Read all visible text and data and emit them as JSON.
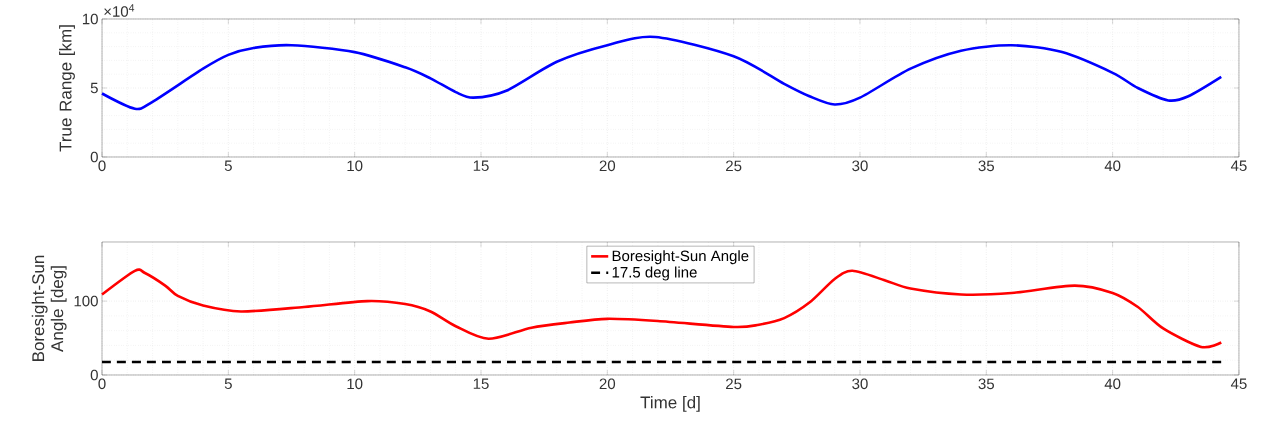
{
  "chart_data": [
    {
      "type": "line",
      "ylabel": "True Range [km]",
      "annotations": [
        "×10$^{4}$"
      ],
      "xlim": [
        0,
        45
      ],
      "xticks": [
        0,
        5,
        10,
        15,
        20,
        25,
        30,
        35,
        40,
        45
      ],
      "ylim": [
        0,
        10
      ],
      "yticks": [
        0,
        5,
        10
      ],
      "grid": true,
      "series": [
        {
          "color": "#0000ff",
          "x": [
            0,
            1.3,
            2,
            4,
            5,
            6,
            7.5,
            10,
            12,
            13,
            14,
            14.7,
            16,
            18,
            20,
            21.9,
            25,
            27,
            28,
            29,
            30,
            32,
            34,
            36,
            38,
            40,
            41,
            42.2,
            43,
            44.3
          ],
          "values": [
            4.6,
            3.5,
            4.0,
            6.4,
            7.4,
            7.9,
            8.1,
            7.6,
            6.5,
            5.7,
            4.7,
            4.3,
            4.8,
            6.9,
            8.1,
            8.7,
            7.3,
            5.3,
            4.4,
            3.8,
            4.3,
            6.4,
            7.7,
            8.1,
            7.6,
            6.1,
            5.0,
            4.1,
            4.4,
            5.8
          ]
        }
      ]
    },
    {
      "type": "line",
      "xlabel": "Time [d]",
      "ylabel": "Boresight-Sun Angle [deg]",
      "xlim": [
        0,
        45
      ],
      "xticks": [
        0,
        5,
        10,
        15,
        20,
        25,
        30,
        35,
        40,
        45
      ],
      "ylim": [
        0,
        180
      ],
      "yticks": [
        0,
        100
      ],
      "grid": true,
      "legend": "top",
      "series": [
        {
          "name": "Boresight-Sun Angle",
          "color": "#ff0000",
          "line_style": "solid",
          "x": [
            0,
            1.3,
            1.7,
            2.5,
            3,
            4,
            5.5,
            8,
            10.5,
            12,
            13,
            14,
            15.3,
            17,
            18.5,
            20,
            22,
            25,
            26,
            27,
            28,
            29,
            29.7,
            31,
            32,
            34,
            36,
            38.5,
            40,
            41,
            42,
            43.5,
            44.3
          ],
          "values": [
            109,
            141,
            138,
            121,
            107,
            94,
            86,
            92,
            100,
            96,
            86,
            66,
            49,
            64,
            71,
            76,
            73,
            65,
            68,
            77,
            98,
            130,
            141,
            128,
            117,
            109,
            111,
            121,
            111,
            92,
            63,
            38,
            44
          ]
        },
        {
          "name": "17.5 deg line",
          "color": "#000000",
          "line_style": "dashed",
          "x": [
            0,
            44.3
          ],
          "values": [
            17.5,
            17.5
          ]
        }
      ]
    }
  ]
}
